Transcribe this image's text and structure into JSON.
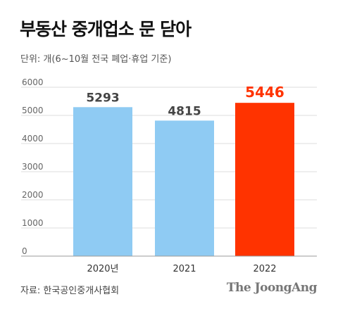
{
  "title": "부동산 중개업소 문 닫아",
  "unit_note": "단위: 개(6~10월 전국 폐업·휴업 기준)",
  "source": "자료: 한국공인중개사협회",
  "brand": "The JoongAng",
  "colors": {
    "bar_default": "#8fcbf3",
    "bar_highlight": "#ff3300",
    "label_default": "#444444",
    "label_highlight": "#ff3300",
    "grid": "#dddddd",
    "axis": "#999999"
  },
  "chart_data": {
    "type": "bar",
    "categories": [
      "2020년",
      "2021",
      "2022"
    ],
    "values": [
      5293,
      4815,
      5446
    ],
    "highlight_index": 2,
    "ylim": [
      0,
      6000
    ],
    "yticks": [
      "0",
      "1000",
      "2000",
      "3000",
      "4000",
      "5000",
      "6000"
    ],
    "ytick_values": [
      0,
      1000,
      2000,
      3000,
      4000,
      5000,
      6000
    ],
    "data_labels": [
      "5293",
      "4815",
      "5446"
    ],
    "grid": true,
    "title": "",
    "xlabel": "",
    "ylabel": ""
  }
}
